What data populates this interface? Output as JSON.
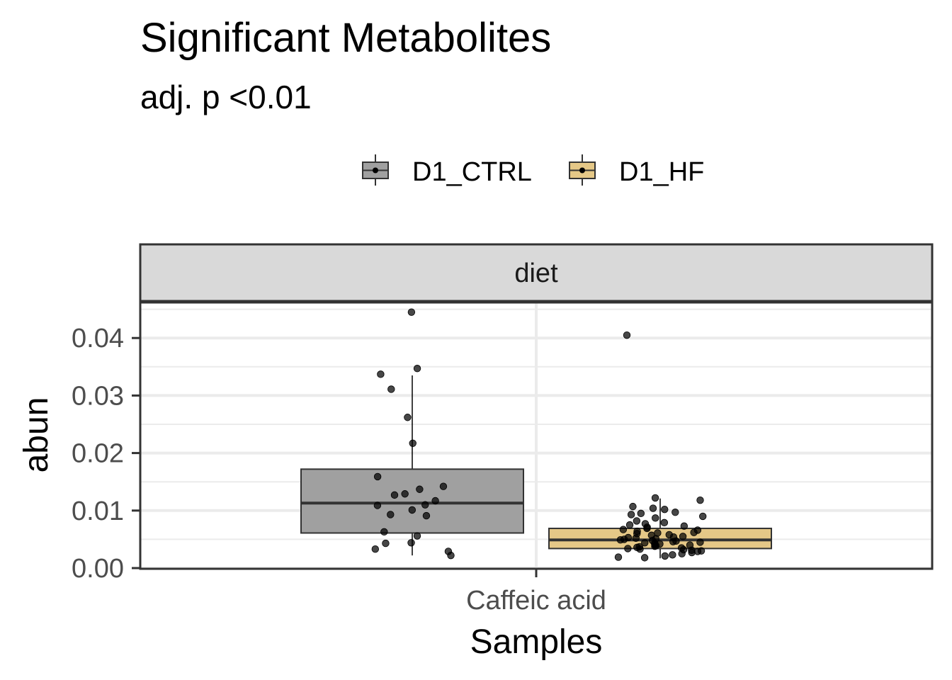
{
  "chart_data": {
    "type": "box",
    "title": "Significant Metabolites",
    "subtitle": "adj. p <0.01",
    "facet_label": "diet",
    "xlabel": "Samples",
    "ylabel": "abun",
    "categories": [
      "Caffeic acid"
    ],
    "ylim": [
      0,
      0.045
    ],
    "y_ticks": [
      "0.00",
      "0.01",
      "0.02",
      "0.03",
      "0.04"
    ],
    "y_tick_values": [
      0,
      0.01,
      0.02,
      0.03,
      0.04
    ],
    "legend_position": "top",
    "grid": true,
    "series": [
      {
        "name": "D1_CTRL",
        "color": "#a0a0a0",
        "stats": {
          "q1": 0.0061,
          "median": 0.0113,
          "q3": 0.0172,
          "whisker_low": 0.0022,
          "whisker_high": 0.0335
        },
        "points": [
          0.0445,
          0.0347,
          0.0337,
          0.0311,
          0.0262,
          0.0217,
          0.0159,
          0.0142,
          0.0137,
          0.0129,
          0.0127,
          0.0117,
          0.011,
          0.0109,
          0.0101,
          0.0093,
          0.0091,
          0.0063,
          0.0056,
          0.0044,
          0.0043,
          0.0033,
          0.0029,
          0.0022
        ]
      },
      {
        "name": "D1_HF",
        "color": "#e5c887",
        "stats": {
          "q1": 0.0034,
          "median": 0.0049,
          "q3": 0.0069,
          "whisker_low": 0.0017,
          "whisker_high": 0.0121
        },
        "points": [
          0.0405,
          0.0122,
          0.0118,
          0.0107,
          0.0104,
          0.0102,
          0.0097,
          0.0095,
          0.0093,
          0.009,
          0.0087,
          0.0082,
          0.0079,
          0.0077,
          0.0075,
          0.0073,
          0.0071,
          0.0069,
          0.0067,
          0.0066,
          0.0064,
          0.0062,
          0.0061,
          0.006,
          0.0058,
          0.0057,
          0.0055,
          0.0054,
          0.0053,
          0.0052,
          0.0051,
          0.005,
          0.0049,
          0.0048,
          0.0047,
          0.0046,
          0.0045,
          0.0044,
          0.0043,
          0.0042,
          0.0041,
          0.004,
          0.0039,
          0.0038,
          0.0037,
          0.0036,
          0.0035,
          0.0034,
          0.0033,
          0.0032,
          0.0031,
          0.003,
          0.0029,
          0.0027,
          0.0025,
          0.0023,
          0.0021,
          0.0019,
          0.0018
        ]
      }
    ]
  }
}
